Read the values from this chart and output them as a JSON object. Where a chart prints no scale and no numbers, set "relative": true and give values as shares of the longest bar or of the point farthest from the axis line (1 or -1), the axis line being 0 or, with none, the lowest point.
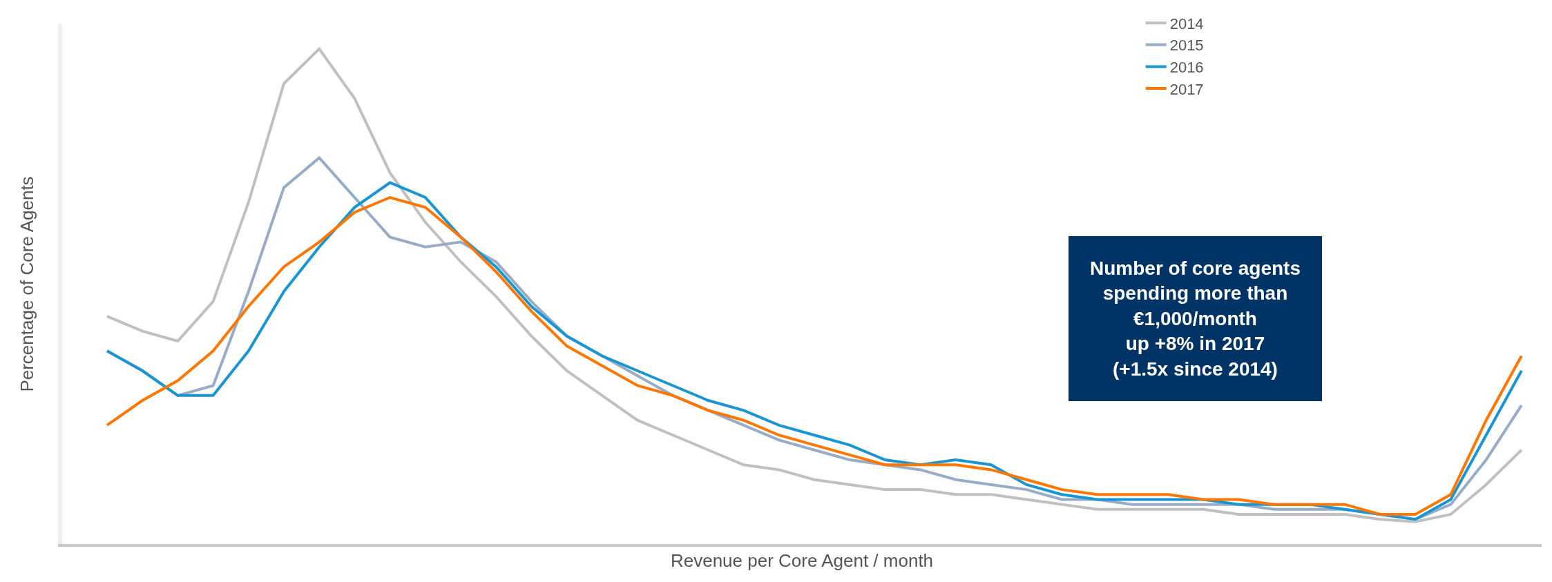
{
  "chart_data": {
    "type": "line",
    "relative": true,
    "xlabel": "Revenue per Core Agent / month",
    "ylabel": "Percentage of Core Agents",
    "categories": [
      null,
      null,
      null,
      null,
      null,
      null,
      null,
      null,
      null,
      null,
      null,
      null,
      null,
      null,
      null,
      null,
      null,
      null,
      null,
      null,
      null,
      null,
      null,
      null,
      null,
      null,
      null,
      null,
      null,
      null,
      null,
      null,
      null,
      null,
      null,
      null,
      null,
      null,
      null,
      null,
      null
    ],
    "series": [
      {
        "name": "2014",
        "color": "#c0c0c0",
        "values": [
          0.46,
          0.43,
          0.41,
          0.49,
          0.69,
          0.93,
          1,
          0.9,
          0.75,
          0.65,
          0.57,
          0.5,
          0.42,
          0.35,
          0.3,
          0.25,
          0.22,
          0.19,
          0.16,
          0.15,
          0.13,
          0.12,
          0.11,
          0.11,
          0.1,
          0.1,
          0.09,
          0.08,
          0.07,
          0.07,
          0.07,
          0.07,
          0.06,
          0.06,
          0.06,
          0.06,
          0.05,
          0.045,
          0.06,
          0.12,
          0.19
        ]
      },
      {
        "name": "2015",
        "color": "#97acc8",
        "values": [
          0.39,
          0.35,
          0.3,
          0.32,
          0.51,
          0.72,
          0.78,
          0.7,
          0.62,
          0.6,
          0.61,
          0.57,
          0.49,
          0.42,
          0.38,
          0.34,
          0.3,
          0.27,
          0.24,
          0.21,
          0.19,
          0.17,
          0.16,
          0.15,
          0.13,
          0.12,
          0.11,
          0.09,
          0.09,
          0.08,
          0.08,
          0.08,
          0.08,
          0.07,
          0.07,
          0.07,
          0.06,
          0.05,
          0.08,
          0.17,
          0.28
        ]
      },
      {
        "name": "2016",
        "color": "#1a95d3",
        "values": [
          0.39,
          0.35,
          0.3,
          0.3,
          0.39,
          0.51,
          0.6,
          0.68,
          0.73,
          0.7,
          0.62,
          0.56,
          0.48,
          0.42,
          0.38,
          0.35,
          0.32,
          0.29,
          0.27,
          0.24,
          0.22,
          0.2,
          0.17,
          0.16,
          0.17,
          0.16,
          0.12,
          0.1,
          0.09,
          0.09,
          0.09,
          0.09,
          0.08,
          0.08,
          0.08,
          0.07,
          0.06,
          0.05,
          0.09,
          0.22,
          0.35
        ]
      },
      {
        "name": "2017",
        "color": "#ff7700",
        "values": [
          0.24,
          0.29,
          0.33,
          0.39,
          0.48,
          0.56,
          0.61,
          0.67,
          0.7,
          0.68,
          0.62,
          0.55,
          0.47,
          0.4,
          0.36,
          0.32,
          0.3,
          0.27,
          0.25,
          0.22,
          0.2,
          0.18,
          0.16,
          0.16,
          0.16,
          0.15,
          0.13,
          0.11,
          0.1,
          0.1,
          0.1,
          0.09,
          0.09,
          0.08,
          0.08,
          0.08,
          0.06,
          0.06,
          0.1,
          0.25,
          0.38
        ]
      }
    ],
    "annotations": [
      "Number of core agents\nspending more than\n€1,000/month\nup +8% in 2017\n(+1.5x since 2014)"
    ],
    "legend": "top right",
    "grid": false,
    "marker": "none",
    "line_style": "solid"
  }
}
